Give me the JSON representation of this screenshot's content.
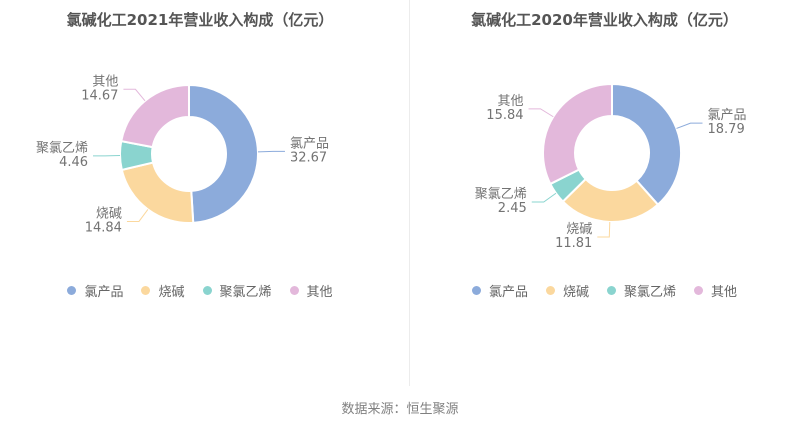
{
  "page": {
    "background": "#ffffff",
    "divider_color": "#ececec"
  },
  "palette": [
    "#8CABDB",
    "#FBD89E",
    "#8AD4CF",
    "#E3B8DB"
  ],
  "text_colors": {
    "title": "#555555",
    "pie_label": "#737373",
    "legend": "#666666",
    "footer": "#808080"
  },
  "chart_data": [
    {
      "type": "pie",
      "subtype": "donut",
      "title": "氯碱化工2021年营业收入构成（亿元）",
      "categories": [
        "氯产品",
        "烧碱",
        "聚氯乙烯",
        "其他"
      ],
      "values": [
        32.67,
        14.84,
        4.46,
        14.67
      ],
      "value_labels": [
        "32.67",
        "14.84",
        "4.46",
        "14.67"
      ],
      "colors": [
        "#8CABDB",
        "#FBD89E",
        "#8AD4CF",
        "#E3B8DB"
      ],
      "legend": [
        "氯产品",
        "烧碱",
        "聚氯乙烯",
        "其他"
      ],
      "legend_position": "bottom",
      "start_angle": "top",
      "direction": "clockwise"
    },
    {
      "type": "pie",
      "subtype": "donut",
      "title": "氯碱化工2020年营业收入构成（亿元）",
      "categories": [
        "氯产品",
        "烧碱",
        "聚氯乙烯",
        "其他"
      ],
      "values": [
        18.79,
        11.81,
        2.45,
        15.84
      ],
      "value_labels": [
        "18.79",
        "11.81",
        "2.45",
        "15.84"
      ],
      "colors": [
        "#8CABDB",
        "#FBD89E",
        "#8AD4CF",
        "#E3B8DB"
      ],
      "legend": [
        "氯产品",
        "烧碱",
        "聚氯乙烯",
        "其他"
      ],
      "legend_position": "bottom",
      "start_angle": "top",
      "direction": "clockwise"
    }
  ],
  "footer": {
    "text": "数据来源：恒生聚源"
  }
}
